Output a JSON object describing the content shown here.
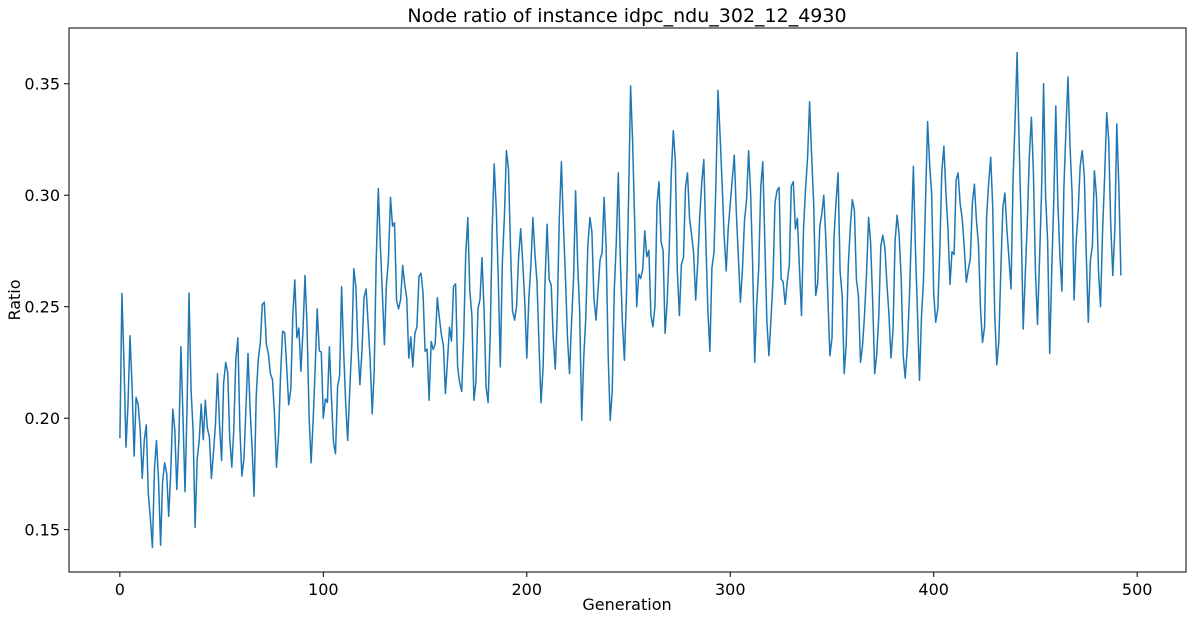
{
  "chart_data": {
    "type": "line",
    "title": "Node ratio of instance idpc_ndu_302_12_4930",
    "xlabel": "Generation",
    "ylabel": "Ratio",
    "xlim": [
      -25,
      524
    ],
    "ylim": [
      0.131,
      0.375
    ],
    "xticks": [
      0,
      100,
      200,
      300,
      400,
      500
    ],
    "yticks": [
      0.15,
      0.2,
      0.25,
      0.3,
      0.35
    ],
    "grid": false,
    "legend": "none",
    "color": "#1f77b4",
    "anchors": [
      [
        0,
        0.191
      ],
      [
        1,
        0.256
      ],
      [
        3,
        0.187
      ],
      [
        5,
        0.237
      ],
      [
        7,
        0.183
      ],
      [
        9,
        0.206
      ],
      [
        11,
        0.173
      ],
      [
        13,
        0.197
      ],
      [
        15,
        0.155
      ],
      [
        16,
        0.142
      ],
      [
        18,
        0.19
      ],
      [
        20,
        0.143
      ],
      [
        22,
        0.18
      ],
      [
        24,
        0.156
      ],
      [
        26,
        0.204
      ],
      [
        28,
        0.168
      ],
      [
        30,
        0.232
      ],
      [
        32,
        0.167
      ],
      [
        34,
        0.256
      ],
      [
        37,
        0.151
      ],
      [
        39,
        0.19
      ],
      [
        42,
        0.208
      ],
      [
        45,
        0.173
      ],
      [
        48,
        0.22
      ],
      [
        50,
        0.181
      ],
      [
        52,
        0.225
      ],
      [
        55,
        0.178
      ],
      [
        58,
        0.236
      ],
      [
        60,
        0.174
      ],
      [
        63,
        0.229
      ],
      [
        66,
        0.165
      ],
      [
        68,
        0.226
      ],
      [
        71,
        0.252
      ],
      [
        74,
        0.22
      ],
      [
        77,
        0.178
      ],
      [
        80,
        0.239
      ],
      [
        83,
        0.206
      ],
      [
        86,
        0.262
      ],
      [
        89,
        0.221
      ],
      [
        91,
        0.264
      ],
      [
        94,
        0.18
      ],
      [
        97,
        0.249
      ],
      [
        100,
        0.2
      ],
      [
        103,
        0.232
      ],
      [
        106,
        0.184
      ],
      [
        109,
        0.259
      ],
      [
        112,
        0.19
      ],
      [
        115,
        0.267
      ],
      [
        118,
        0.215
      ],
      [
        121,
        0.258
      ],
      [
        124,
        0.202
      ],
      [
        127,
        0.303
      ],
      [
        130,
        0.233
      ],
      [
        133,
        0.299
      ],
      [
        137,
        0.249
      ],
      [
        140,
        0.26
      ],
      [
        144,
        0.223
      ],
      [
        148,
        0.265
      ],
      [
        152,
        0.208
      ],
      [
        156,
        0.254
      ],
      [
        160,
        0.211
      ],
      [
        164,
        0.259
      ],
      [
        168,
        0.212
      ],
      [
        171,
        0.29
      ],
      [
        174,
        0.208
      ],
      [
        178,
        0.272
      ],
      [
        181,
        0.207
      ],
      [
        184,
        0.314
      ],
      [
        187,
        0.223
      ],
      [
        190,
        0.32
      ],
      [
        194,
        0.244
      ],
      [
        197,
        0.285
      ],
      [
        200,
        0.227
      ],
      [
        203,
        0.29
      ],
      [
        207,
        0.207
      ],
      [
        210,
        0.287
      ],
      [
        214,
        0.222
      ],
      [
        217,
        0.315
      ],
      [
        221,
        0.22
      ],
      [
        224,
        0.302
      ],
      [
        227,
        0.199
      ],
      [
        231,
        0.29
      ],
      [
        234,
        0.244
      ],
      [
        238,
        0.299
      ],
      [
        241,
        0.199
      ],
      [
        245,
        0.31
      ],
      [
        248,
        0.226
      ],
      [
        251,
        0.349
      ],
      [
        254,
        0.25
      ],
      [
        258,
        0.284
      ],
      [
        262,
        0.241
      ],
      [
        265,
        0.306
      ],
      [
        268,
        0.238
      ],
      [
        272,
        0.329
      ],
      [
        275,
        0.246
      ],
      [
        279,
        0.31
      ],
      [
        283,
        0.253
      ],
      [
        287,
        0.316
      ],
      [
        290,
        0.23
      ],
      [
        294,
        0.347
      ],
      [
        298,
        0.266
      ],
      [
        302,
        0.318
      ],
      [
        305,
        0.252
      ],
      [
        309,
        0.32
      ],
      [
        312,
        0.225
      ],
      [
        316,
        0.315
      ],
      [
        319,
        0.228
      ],
      [
        323,
        0.302
      ],
      [
        327,
        0.251
      ],
      [
        331,
        0.306
      ],
      [
        335,
        0.246
      ],
      [
        339,
        0.342
      ],
      [
        342,
        0.255
      ],
      [
        346,
        0.3
      ],
      [
        349,
        0.228
      ],
      [
        353,
        0.31
      ],
      [
        356,
        0.22
      ],
      [
        360,
        0.298
      ],
      [
        364,
        0.225
      ],
      [
        368,
        0.29
      ],
      [
        371,
        0.22
      ],
      [
        375,
        0.282
      ],
      [
        379,
        0.227
      ],
      [
        382,
        0.291
      ],
      [
        386,
        0.218
      ],
      [
        390,
        0.313
      ],
      [
        393,
        0.217
      ],
      [
        397,
        0.333
      ],
      [
        401,
        0.243
      ],
      [
        405,
        0.322
      ],
      [
        408,
        0.26
      ],
      [
        412,
        0.31
      ],
      [
        416,
        0.261
      ],
      [
        420,
        0.305
      ],
      [
        424,
        0.234
      ],
      [
        428,
        0.317
      ],
      [
        431,
        0.224
      ],
      [
        435,
        0.301
      ],
      [
        438,
        0.258
      ],
      [
        441,
        0.364
      ],
      [
        444,
        0.24
      ],
      [
        448,
        0.335
      ],
      [
        451,
        0.242
      ],
      [
        454,
        0.35
      ],
      [
        457,
        0.229
      ],
      [
        460,
        0.34
      ],
      [
        463,
        0.257
      ],
      [
        466,
        0.353
      ],
      [
        469,
        0.253
      ],
      [
        473,
        0.32
      ],
      [
        476,
        0.243
      ],
      [
        479,
        0.311
      ],
      [
        482,
        0.25
      ],
      [
        485,
        0.337
      ],
      [
        488,
        0.264
      ],
      [
        490,
        0.332
      ],
      [
        492,
        0.264
      ]
    ]
  }
}
